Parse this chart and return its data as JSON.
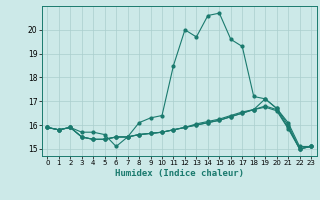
{
  "xlabel": "Humidex (Indice chaleur)",
  "bg_color": "#cce9e8",
  "grid_color": "#aacece",
  "line_color": "#1a7a6e",
  "xlim": [
    -0.5,
    23.5
  ],
  "ylim": [
    14.7,
    21.0
  ],
  "yticks": [
    15,
    16,
    17,
    18,
    19,
    20
  ],
  "xticks": [
    0,
    1,
    2,
    3,
    4,
    5,
    6,
    7,
    8,
    9,
    10,
    11,
    12,
    13,
    14,
    15,
    16,
    17,
    18,
    19,
    20,
    21,
    22,
    23
  ],
  "line1_x": [
    0,
    1,
    2,
    3,
    4,
    5,
    6,
    7,
    8,
    9,
    10,
    11,
    12,
    13,
    14,
    15,
    16,
    17,
    18,
    19,
    20,
    21,
    22,
    23
  ],
  "line1_y": [
    15.9,
    15.8,
    15.9,
    15.7,
    15.7,
    15.6,
    15.1,
    15.5,
    16.1,
    16.3,
    16.4,
    18.5,
    20.0,
    19.7,
    20.6,
    20.7,
    19.6,
    19.3,
    17.2,
    17.1,
    16.7,
    16.0,
    15.0,
    15.1
  ],
  "line2_x": [
    0,
    1,
    2,
    3,
    4,
    5,
    6,
    7,
    8,
    9,
    10,
    11,
    12,
    13,
    14,
    15,
    16,
    17,
    18,
    19,
    20,
    21,
    22,
    23
  ],
  "line2_y": [
    15.9,
    15.8,
    15.9,
    15.5,
    15.4,
    15.4,
    15.5,
    15.5,
    15.6,
    15.65,
    15.7,
    15.8,
    15.9,
    16.0,
    16.1,
    16.2,
    16.35,
    16.5,
    16.65,
    17.1,
    16.7,
    16.1,
    15.1,
    15.1
  ],
  "line3_x": [
    0,
    1,
    2,
    3,
    4,
    5,
    6,
    7,
    8,
    9,
    10,
    11,
    12,
    13,
    14,
    15,
    16,
    17,
    18,
    19,
    20,
    21,
    22,
    23
  ],
  "line3_y": [
    15.9,
    15.8,
    15.9,
    15.5,
    15.4,
    15.4,
    15.5,
    15.5,
    15.6,
    15.65,
    15.7,
    15.8,
    15.9,
    16.0,
    16.1,
    16.2,
    16.35,
    16.5,
    16.65,
    16.8,
    16.65,
    15.9,
    15.0,
    15.1
  ],
  "line4_x": [
    0,
    1,
    2,
    3,
    4,
    5,
    6,
    7,
    8,
    9,
    10,
    11,
    12,
    13,
    14,
    15,
    16,
    17,
    18,
    19,
    20,
    21,
    22,
    23
  ],
  "line4_y": [
    15.9,
    15.8,
    15.9,
    15.5,
    15.4,
    15.4,
    15.5,
    15.5,
    15.6,
    15.65,
    15.7,
    15.8,
    15.9,
    16.05,
    16.15,
    16.25,
    16.4,
    16.55,
    16.65,
    16.75,
    16.6,
    15.85,
    15.0,
    15.1
  ],
  "markersize": 2.0,
  "linewidth": 0.8
}
